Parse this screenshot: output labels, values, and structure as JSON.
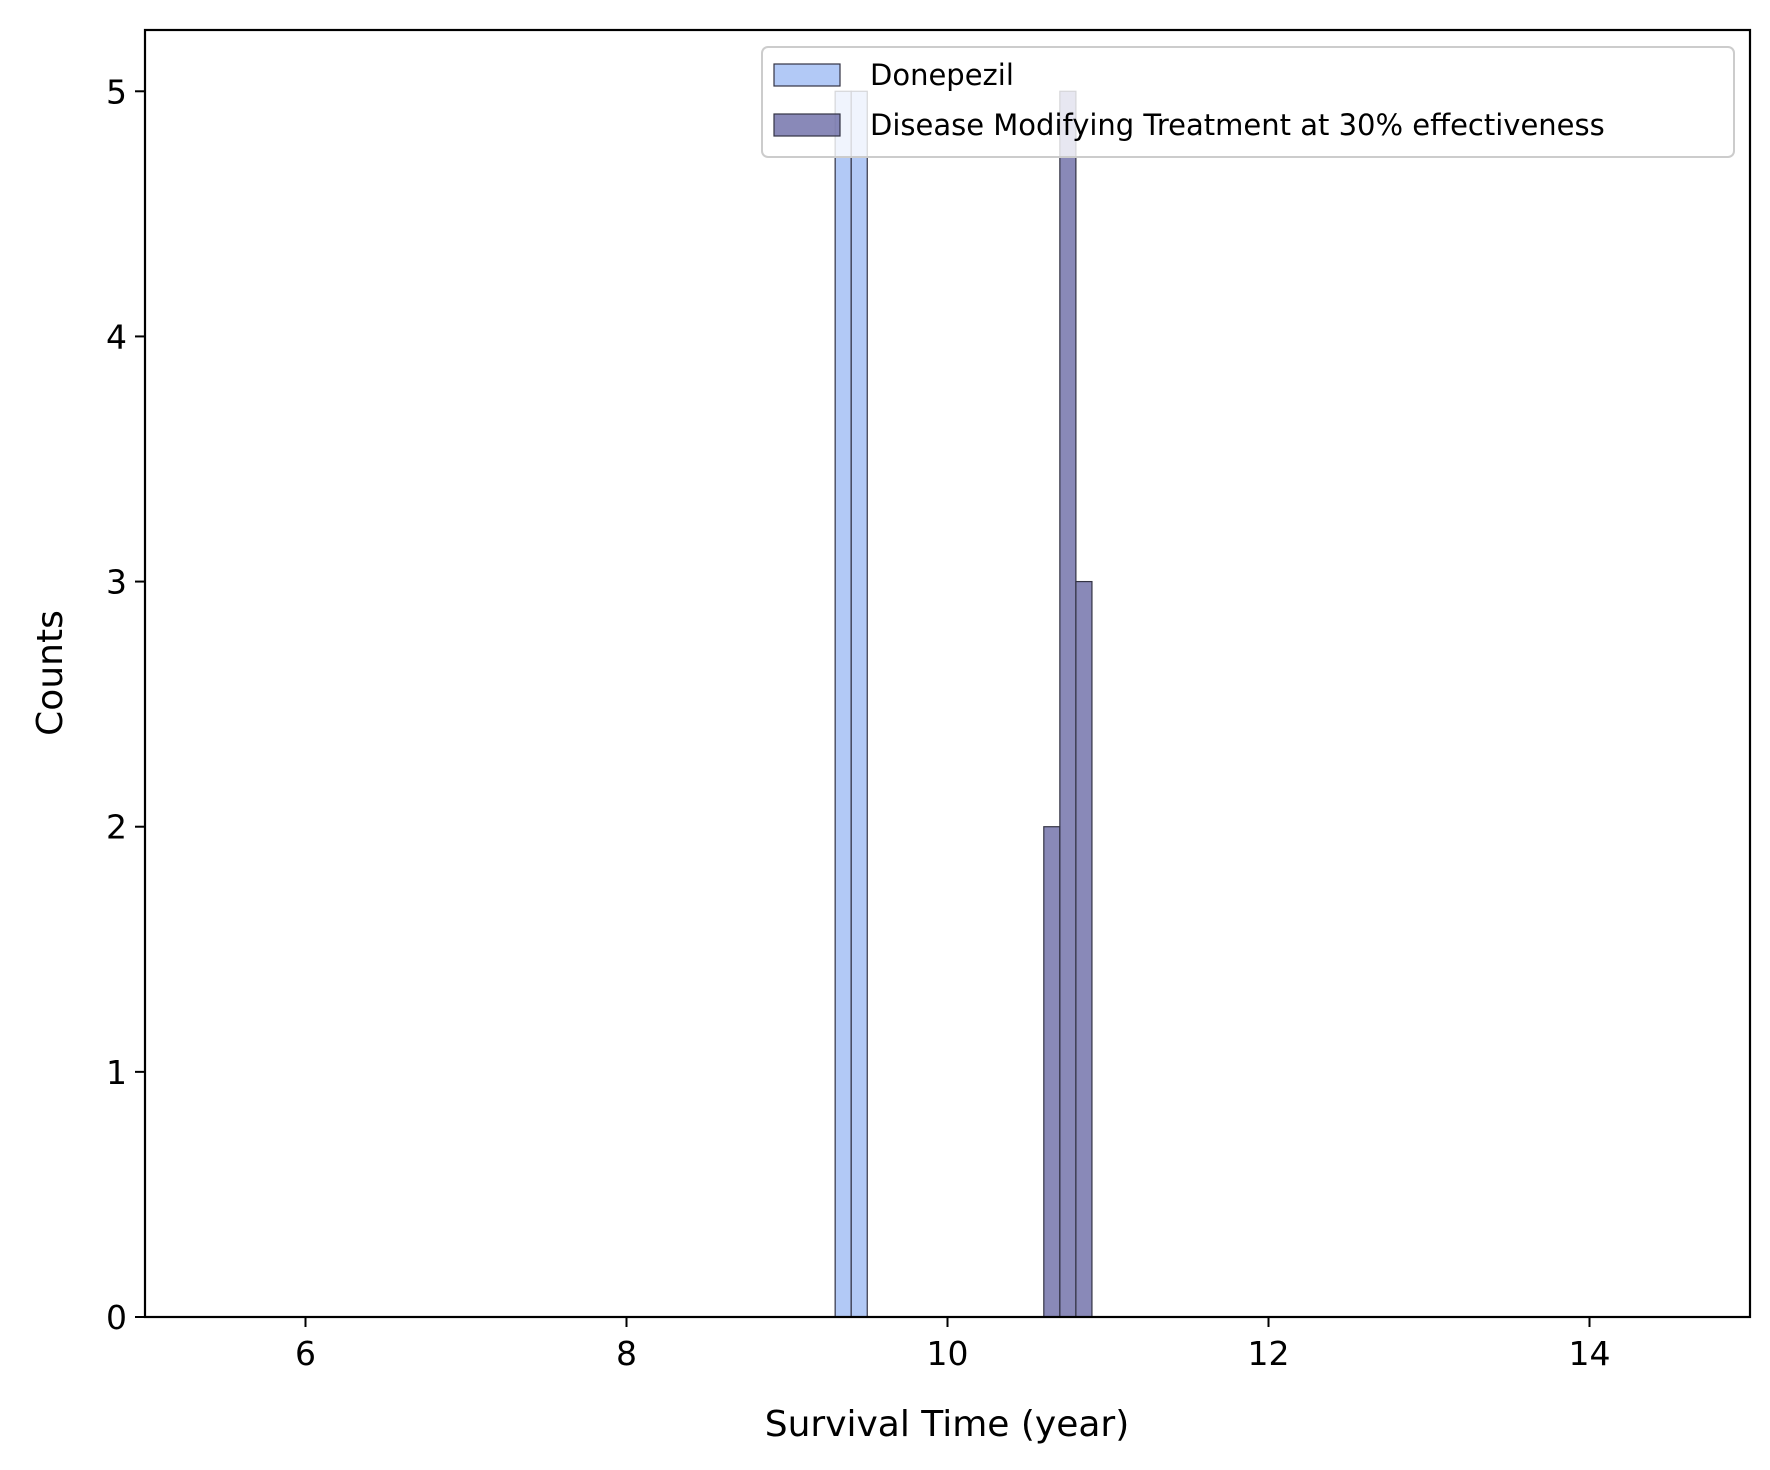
{
  "chart_data": {
    "type": "bar",
    "title": "",
    "xlabel": "Survival Time (year)",
    "ylabel": "Counts",
    "xlim": [
      5,
      15
    ],
    "ylim": [
      0,
      5.25
    ],
    "xticks": [
      6,
      8,
      10,
      12,
      14
    ],
    "yticks": [
      0,
      1,
      2,
      3,
      4,
      5
    ],
    "grid": false,
    "legend_position": "top-right",
    "series": [
      {
        "name": "Donepezil",
        "color": "#a4c0f4",
        "edgecolor": "#333344",
        "alpha": 0.85,
        "bins": [
          {
            "x0": 9.3,
            "x1": 9.4,
            "count": 5
          },
          {
            "x0": 9.4,
            "x1": 9.5,
            "count": 5
          }
        ]
      },
      {
        "name": "Disease Modifying Treatment at 30% effectiveness",
        "color": "#6b6ba6",
        "edgecolor": "#333344",
        "alpha": 0.8,
        "bins": [
          {
            "x0": 10.6,
            "x1": 10.7,
            "count": 2
          },
          {
            "x0": 10.7,
            "x1": 10.8,
            "count": 5
          },
          {
            "x0": 10.8,
            "x1": 10.9,
            "count": 3
          }
        ]
      }
    ]
  }
}
